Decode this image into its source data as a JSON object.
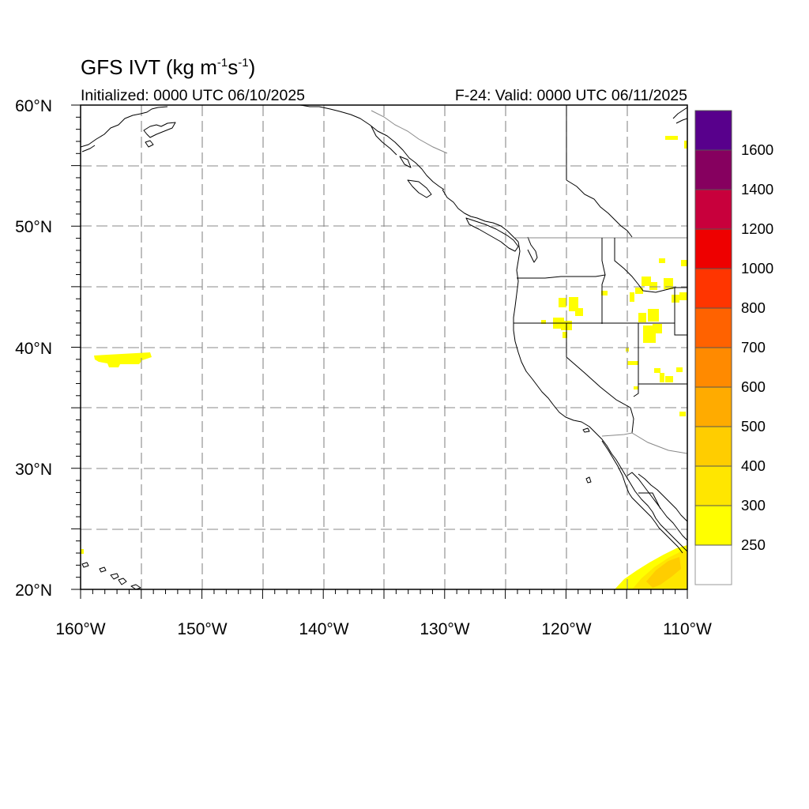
{
  "title": {
    "prefix": "GFS IVT (kg m",
    "exp1": "-1",
    "middle": "s",
    "exp2": "-1",
    "suffix": ")"
  },
  "init_label": "Initialized: 0000 UTC 06/10/2025",
  "valid_label": "F-24: Valid: 0000 UTC 06/11/2025",
  "map": {
    "lon_range": [
      -160,
      -110
    ],
    "lat_range": [
      20,
      60
    ],
    "lat_labels": [
      "60°N",
      "50°N",
      "40°N",
      "30°N",
      "20°N"
    ],
    "lon_labels": [
      "160°W",
      "150°W",
      "140°W",
      "130°W",
      "120°W",
      "110°W"
    ],
    "coastline_color": "#000000",
    "gridline_color": "#888888"
  },
  "colorbar": {
    "labels": [
      "250",
      "300",
      "400",
      "500",
      "600",
      "700",
      "800",
      "1000",
      "1200",
      "1400",
      "1600"
    ],
    "colors": [
      "#ffffff",
      "#ffff00",
      "#ffe600",
      "#ffcd00",
      "#ffab00",
      "#ff8a00",
      "#ff6200",
      "#ff3500",
      "#ee0000",
      "#c8003c",
      "#86005f",
      "#58008c"
    ]
  },
  "ivt_regions": [
    {
      "name": "central-pacific-band",
      "level": "250-300",
      "lon": -156,
      "lat": 39.2
    },
    {
      "name": "great-basin-patches",
      "level": "250-300",
      "lon": -116,
      "lat": 42
    },
    {
      "name": "gulf-of-california-south",
      "level": "250-400",
      "lon": -112,
      "lat": 21.5
    }
  ]
}
